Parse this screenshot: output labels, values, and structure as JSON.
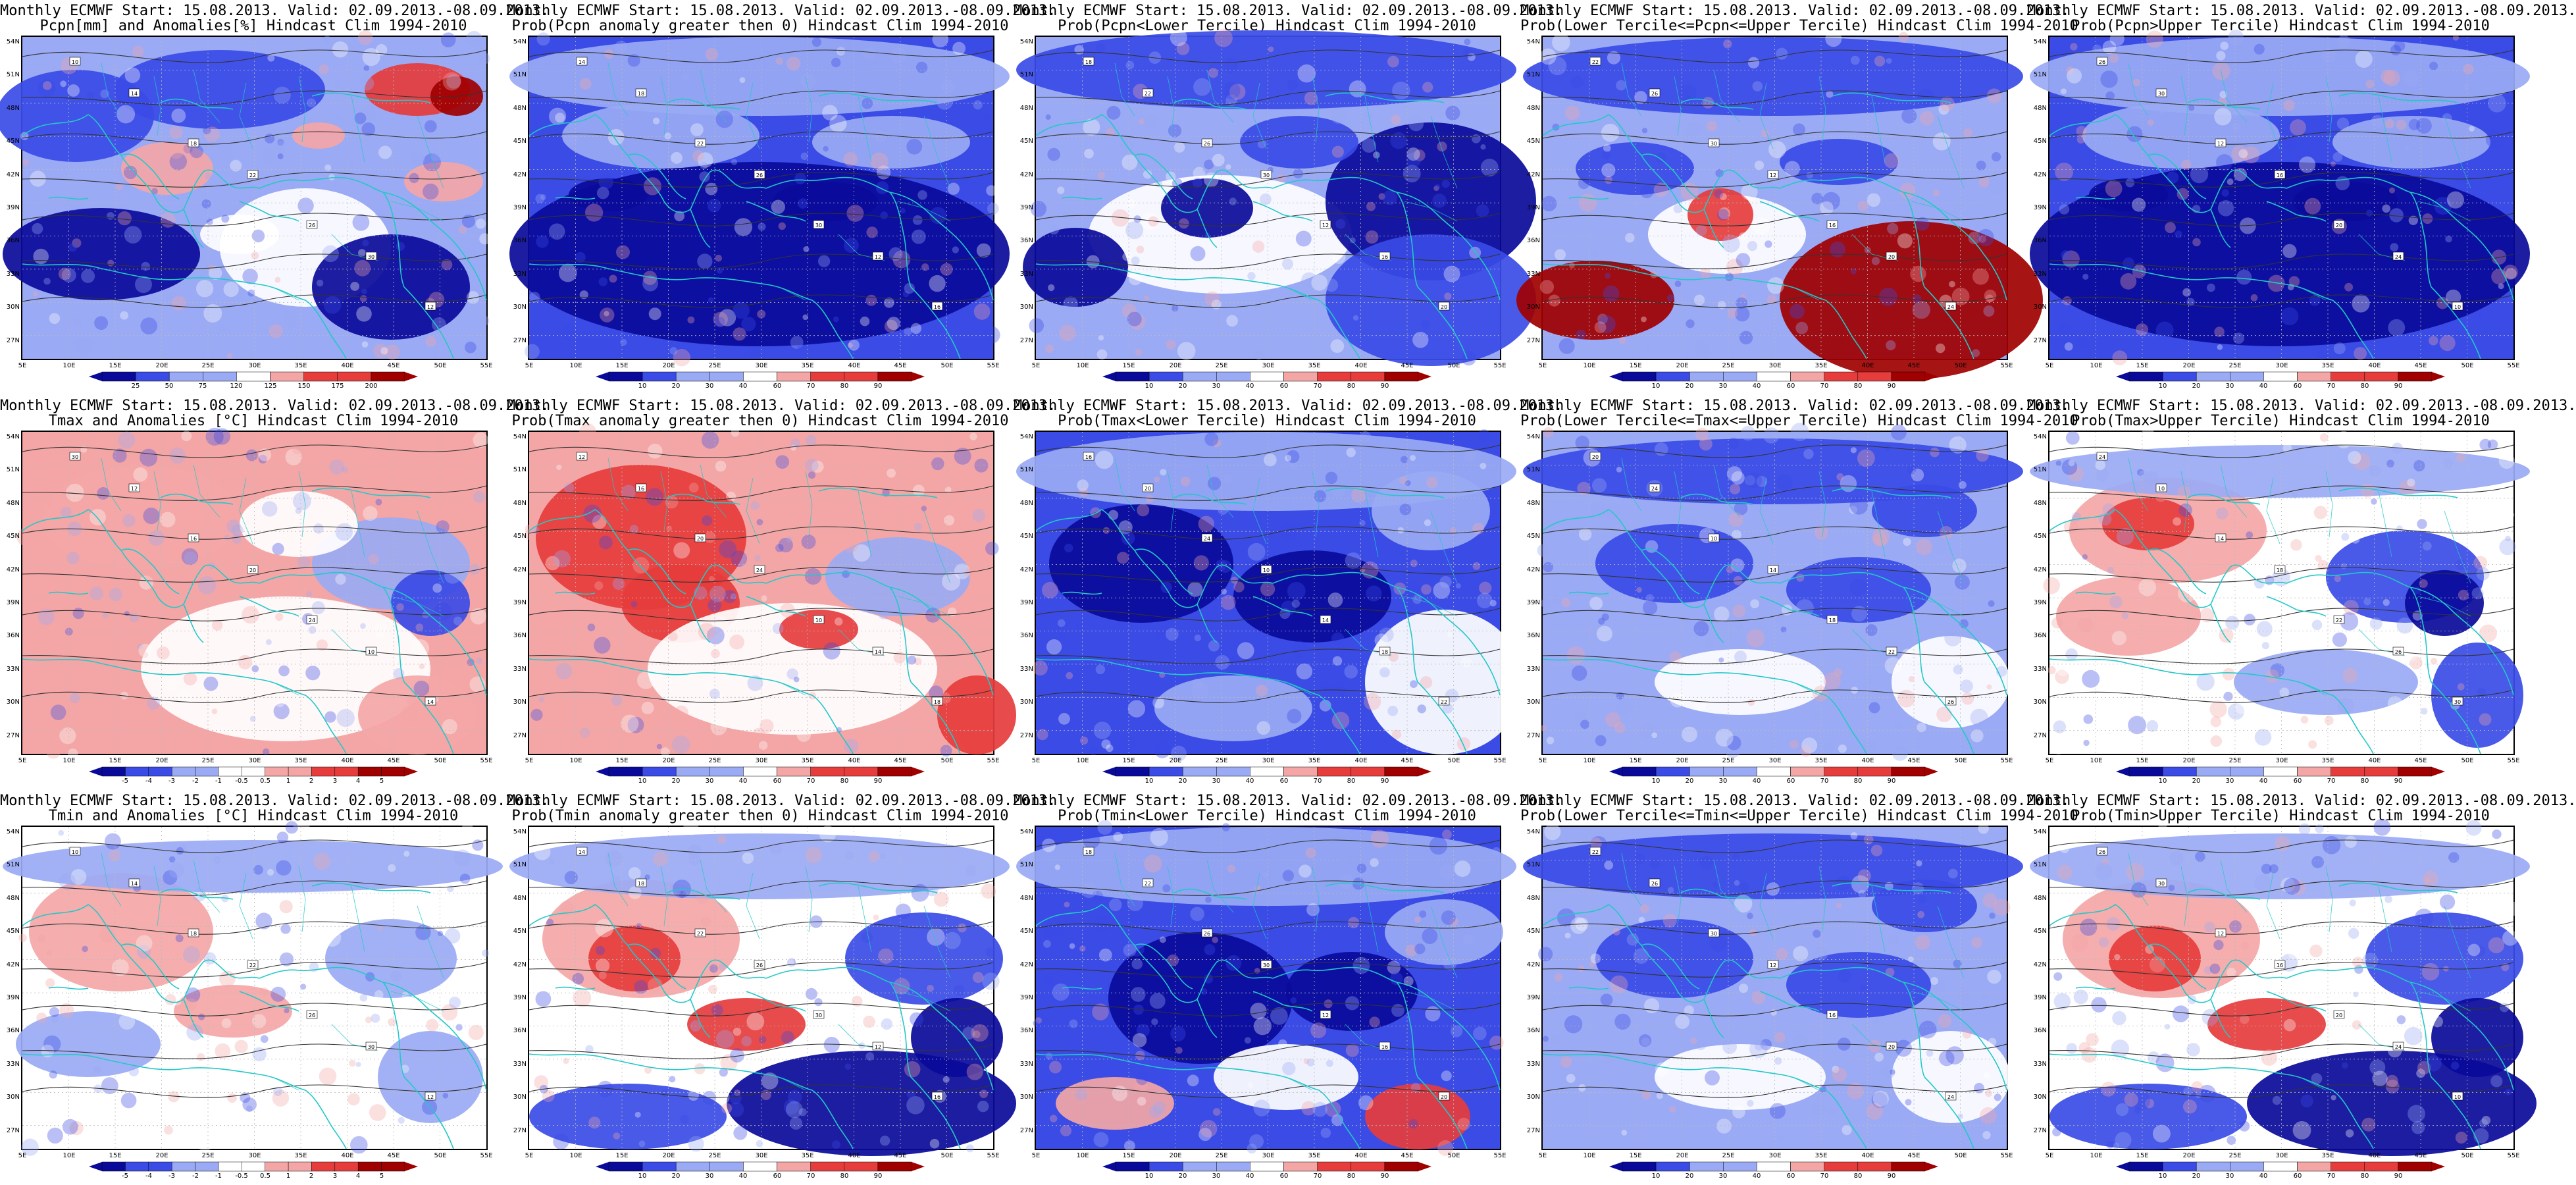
{
  "map": {
    "region": "Southern Europe, Mediterranean and Middle East",
    "lat_ticks": [
      "54N",
      "51N",
      "48N",
      "45N",
      "42N",
      "39N",
      "36N",
      "33N",
      "30N",
      "27N"
    ],
    "lon_ticks": [
      "5E",
      "10E",
      "15E",
      "20E",
      "25E",
      "30E",
      "35E",
      "40E",
      "45E",
      "50E",
      "55E"
    ],
    "colors": {
      "coast": "#22c8c8",
      "contour": "#333333",
      "blue_dark": "#0a0a9a",
      "blue_mid": "#3a4be6",
      "blue_light": "#9aaaf4",
      "neutral": "#ffffff",
      "red_light": "#f4a6a6",
      "red_mid": "#e63c3c",
      "red_dark": "#a00000"
    }
  },
  "panels": [
    {
      "row": 0,
      "col": 0,
      "title_line1": "Monthly ECMWF Start: 15.08.2013. Valid: 02.09.2013.-08.09.2013.",
      "title_line2": "Pcpn[mm] and Anomalies[%] Hindcast Clim 1994-2010",
      "colorbar": [
        "25",
        "50",
        "75",
        "120",
        "125",
        "150",
        "175",
        "200"
      ],
      "pattern": "pcpn_anom"
    },
    {
      "row": 0,
      "col": 1,
      "title_line1": "Monthly ECMWF Start: 15.08.2013. Valid: 02.09.2013.-08.09.2013.",
      "title_line2": "Prob(Pcpn anomaly greater then 0) Hindcast Clim 1994-2010",
      "colorbar": [
        "10",
        "20",
        "30",
        "40",
        "60",
        "70",
        "80",
        "90"
      ],
      "pattern": "dry_strong"
    },
    {
      "row": 0,
      "col": 2,
      "title_line1": "Monthly ECMWF Start: 15.08.2013. Valid: 02.09.2013.-08.09.2013.",
      "title_line2": "Prob(Pcpn<Lower Tercile) Hindcast Clim 1994-2010",
      "colorbar": [
        "10",
        "20",
        "30",
        "40",
        "60",
        "70",
        "80",
        "90"
      ],
      "pattern": "pcpn_lower"
    },
    {
      "row": 0,
      "col": 3,
      "title_line1": "Monthly ECMWF Start: 15.08.2013. Valid: 02.09.2013.-08.09.2013.",
      "title_line2": "Prob(Lower Tercile<=Pcpn<=Upper Tercile) Hindcast Clim 1994-2010",
      "colorbar": [
        "10",
        "20",
        "30",
        "40",
        "60",
        "70",
        "80",
        "90"
      ],
      "pattern": "pcpn_middle"
    },
    {
      "row": 0,
      "col": 4,
      "title_line1": "Monthly ECMWF Start: 15.08.2013. Valid: 02.09.2013.-08.09.2013.",
      "title_line2": "Prob(Pcpn>Upper Tercile) Hindcast Clim 1994-2010",
      "colorbar": [
        "10",
        "20",
        "30",
        "40",
        "60",
        "70",
        "80",
        "90"
      ],
      "pattern": "dry_strong"
    },
    {
      "row": 1,
      "col": 0,
      "title_line1": "Monthly ECMWF Start: 15.08.2013. Valid: 02.09.2013.-08.09.2013.",
      "title_line2": "Tmax and Anomalies [°C] Hindcast Clim 1994-2010",
      "colorbar": [
        "-5",
        "-4",
        "-3",
        "-2",
        "-1",
        "-0.5",
        "0.5",
        "1",
        "2",
        "3",
        "4",
        "5"
      ],
      "pattern": "warm_mild"
    },
    {
      "row": 1,
      "col": 1,
      "title_line1": "Monthly ECMWF Start: 15.08.2013. Valid: 02.09.2013.-08.09.2013.",
      "title_line2": "Prob(Tmax anomaly greater then 0) Hindcast Clim 1994-2010",
      "colorbar": [
        "10",
        "20",
        "30",
        "40",
        "60",
        "70",
        "80",
        "90"
      ],
      "pattern": "warm_strong"
    },
    {
      "row": 1,
      "col": 2,
      "title_line1": "Monthly ECMWF Start: 15.08.2013. Valid: 02.09.2013.-08.09.2013.",
      "title_line2": "Prob(Tmax<Lower Tercile) Hindcast Clim 1994-2010",
      "colorbar": [
        "10",
        "20",
        "30",
        "40",
        "60",
        "70",
        "80",
        "90"
      ],
      "pattern": "cold_mid"
    },
    {
      "row": 1,
      "col": 3,
      "title_line1": "Monthly ECMWF Start: 15.08.2013. Valid: 02.09.2013.-08.09.2013.",
      "title_line2": "Prob(Lower Tercile<=Tmax<=Upper Tercile) Hindcast Clim 1994-2010",
      "colorbar": [
        "10",
        "20",
        "30",
        "40",
        "60",
        "70",
        "80",
        "90"
      ],
      "pattern": "middle_blue"
    },
    {
      "row": 1,
      "col": 4,
      "title_line1": "Monthly ECMWF Start: 15.08.2013. Valid: 02.09.2013.-08.09.2013.",
      "title_line2": "Prob(Tmax>Upper Tercile) Hindcast Clim 1994-2010",
      "colorbar": [
        "10",
        "20",
        "30",
        "40",
        "60",
        "70",
        "80",
        "90"
      ],
      "pattern": "warm_mix"
    },
    {
      "row": 2,
      "col": 0,
      "title_line1": "Monthly ECMWF Start: 15.08.2013. Valid: 02.09.2013.-08.09.2013.",
      "title_line2": "Tmin and Anomalies [°C] Hindcast Clim 1994-2010",
      "colorbar": [
        "-5",
        "-4",
        "-3",
        "-2",
        "-1",
        "-0.5",
        "0.5",
        "1",
        "2",
        "3",
        "4",
        "5"
      ],
      "pattern": "mild_mix"
    },
    {
      "row": 2,
      "col": 1,
      "title_line1": "Monthly ECMWF Start: 15.08.2013. Valid: 02.09.2013.-08.09.2013.",
      "title_line2": "Prob(Tmin anomaly greater then 0) Hindcast Clim 1994-2010",
      "colorbar": [
        "10",
        "20",
        "30",
        "40",
        "60",
        "70",
        "80",
        "90"
      ],
      "pattern": "warm_south_blue"
    },
    {
      "row": 2,
      "col": 2,
      "title_line1": "Monthly ECMWF Start: 15.08.2013. Valid: 02.09.2013.-08.09.2013.",
      "title_line2": "Prob(Tmin<Lower Tercile) Hindcast Clim 1994-2010",
      "colorbar": [
        "10",
        "20",
        "30",
        "40",
        "60",
        "70",
        "80",
        "90"
      ],
      "pattern": "cold_center"
    },
    {
      "row": 2,
      "col": 3,
      "title_line1": "Monthly ECMWF Start: 15.08.2013. Valid: 02.09.2013.-08.09.2013.",
      "title_line2": "Prob(Lower Tercile<=Tmin<=Upper Tercile) Hindcast Clim 1994-2010",
      "colorbar": [
        "10",
        "20",
        "30",
        "40",
        "60",
        "70",
        "80",
        "90"
      ],
      "pattern": "middle_blue"
    },
    {
      "row": 2,
      "col": 4,
      "title_line1": "Monthly ECMWF Start: 15.08.2013. Valid: 02.09.2013.-08.09.2013.",
      "title_line2": "Prob(Tmin>Upper Tercile) Hindcast Clim 1994-2010",
      "colorbar": [
        "10",
        "20",
        "30",
        "40",
        "60",
        "70",
        "80",
        "90"
      ],
      "pattern": "warm_south_blue"
    }
  ]
}
